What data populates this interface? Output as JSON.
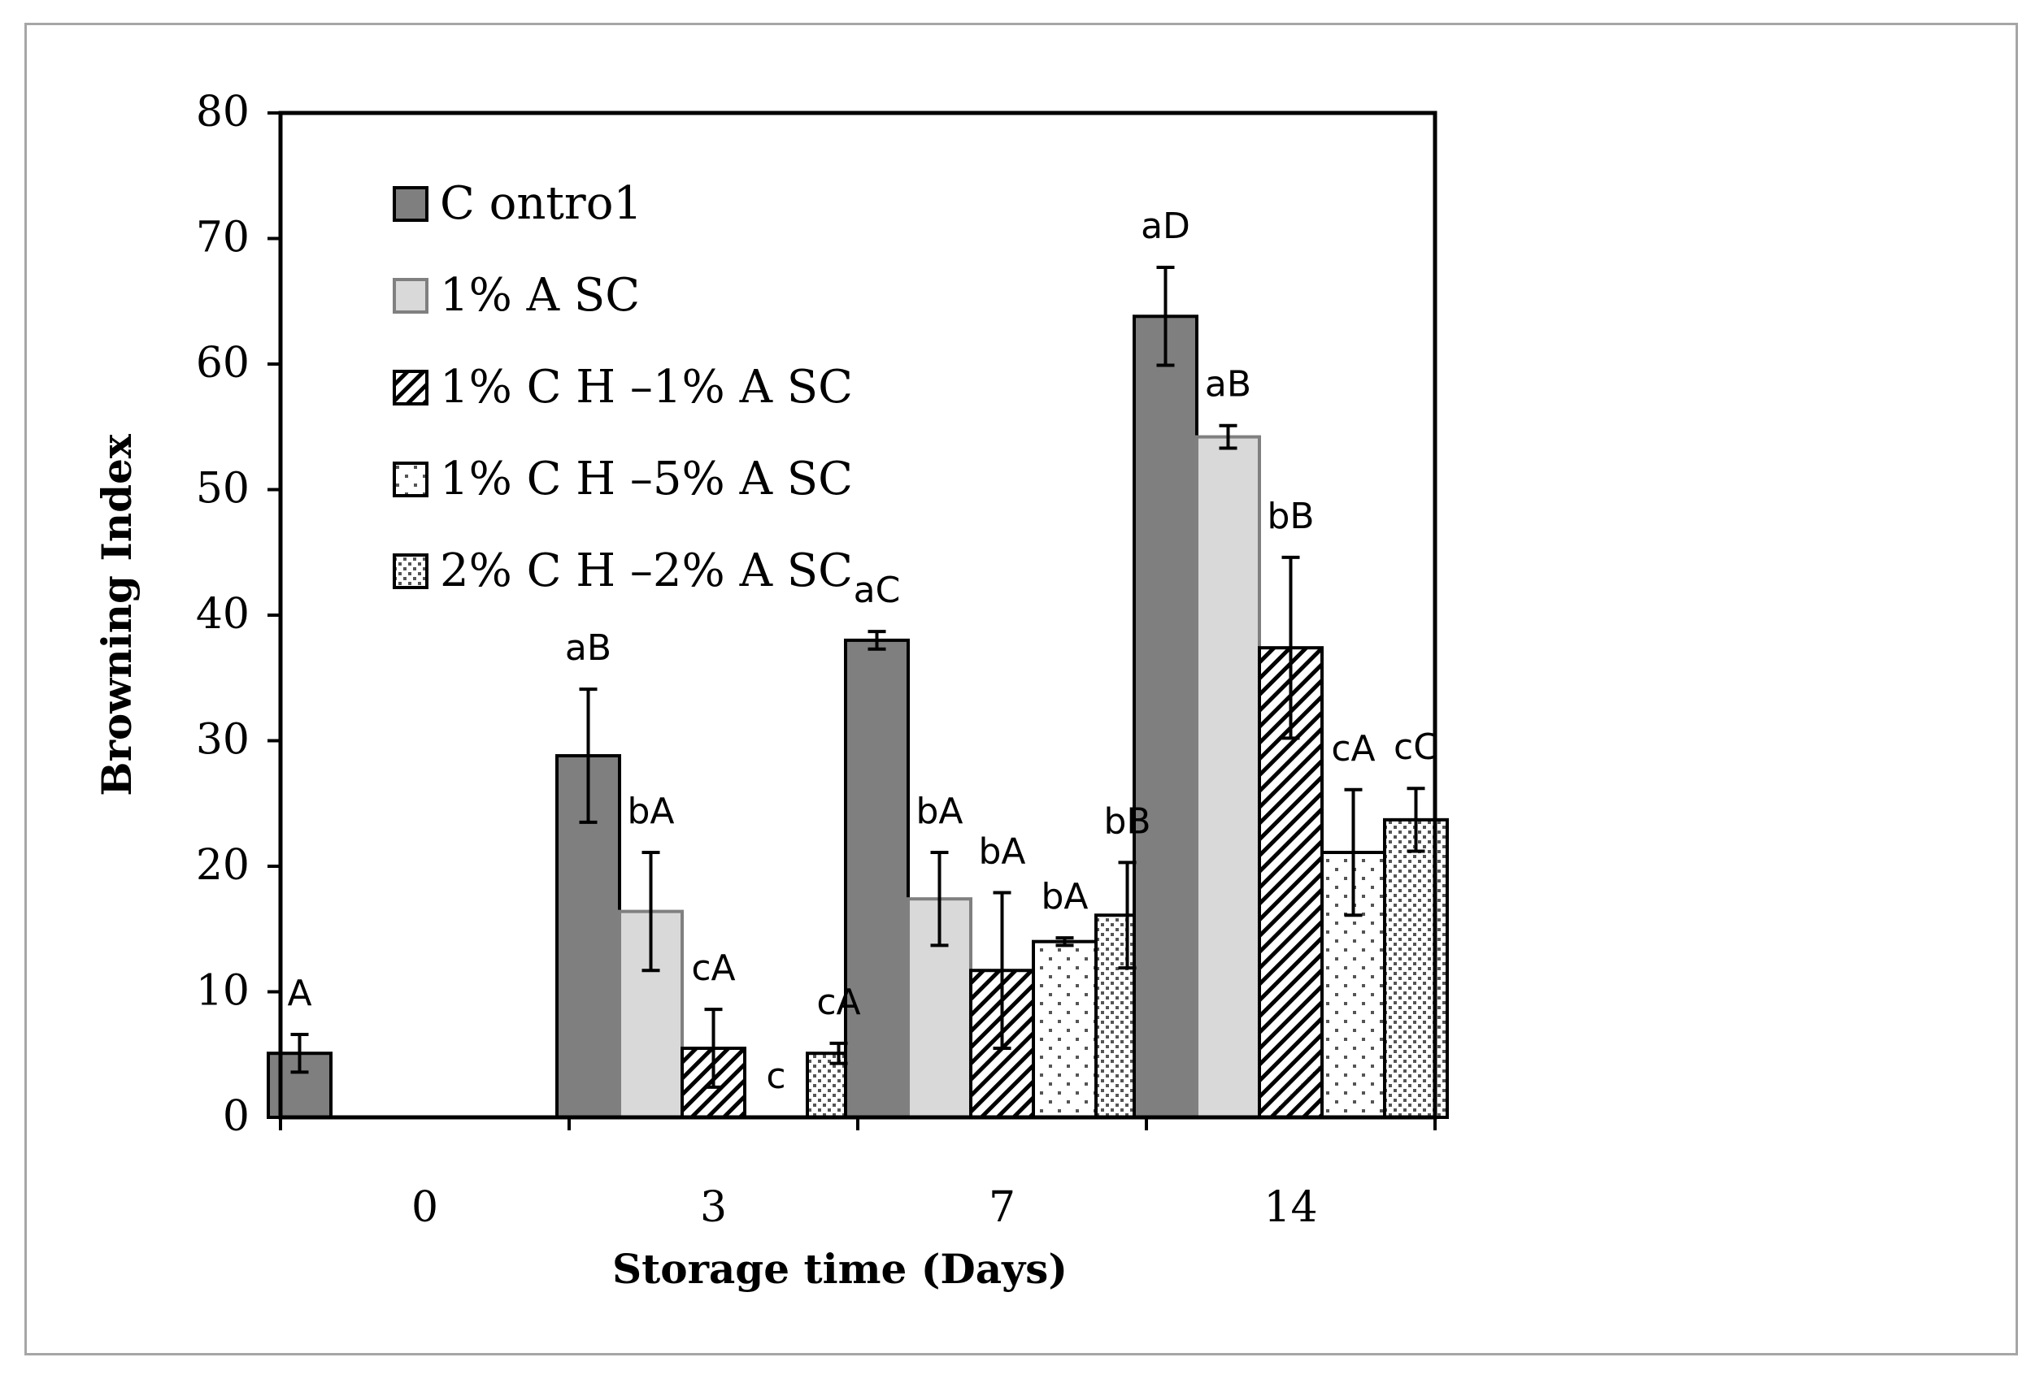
{
  "chart_data": {
    "type": "bar",
    "xlabel": "Storage time (Days)",
    "ylabel": "Browning Index",
    "ylim": [
      0,
      80
    ],
    "yticks": [
      "0",
      "10",
      "20",
      "30",
      "40",
      "50",
      "60",
      "70",
      "80"
    ],
    "categories": [
      "0",
      "3",
      "7",
      "14"
    ],
    "grid": false,
    "legend_position": "top-left",
    "series": [
      {
        "name": "C ontro1",
        "fill": "#7f7f7f",
        "pattern": "solid-dark",
        "values": [
          5.1,
          28.8,
          38.0,
          63.8
        ],
        "errors": [
          1.5,
          5.3,
          0.7,
          3.9
        ],
        "labels": [
          "A",
          "aB",
          "aC",
          "aD"
        ]
      },
      {
        "name": "1% A SC",
        "fill": "#d9d9d9",
        "pattern": "solid-light",
        "values": [
          null,
          16.4,
          17.4,
          54.2
        ],
        "errors": [
          null,
          4.7,
          3.7,
          0.9
        ],
        "labels": [
          null,
          "bA",
          "bA",
          "aB"
        ]
      },
      {
        "name": "1% C H –1% A SC",
        "fill": "#ffffff",
        "pattern": "diagonal-hatch",
        "values": [
          null,
          5.5,
          11.7,
          37.4
        ],
        "errors": [
          null,
          3.1,
          6.2,
          7.2
        ],
        "labels": [
          null,
          "cA",
          "bA",
          "bB"
        ]
      },
      {
        "name": "1% C H –5% A SC",
        "fill": "#ffffff",
        "pattern": "sparse-dots",
        "values": [
          null,
          0,
          14.0,
          21.1
        ],
        "errors": [
          null,
          null,
          0.3,
          5.0
        ],
        "labels": [
          null,
          "c",
          "bA",
          "cA"
        ]
      },
      {
        "name": "2% C H –2% A SC",
        "fill": "#ffffff",
        "pattern": "dense-dots",
        "values": [
          null,
          5.1,
          16.1,
          23.7
        ],
        "errors": [
          null,
          0.8,
          4.2,
          2.5
        ],
        "labels": [
          null,
          "cA",
          "bB",
          "cC"
        ]
      }
    ]
  }
}
